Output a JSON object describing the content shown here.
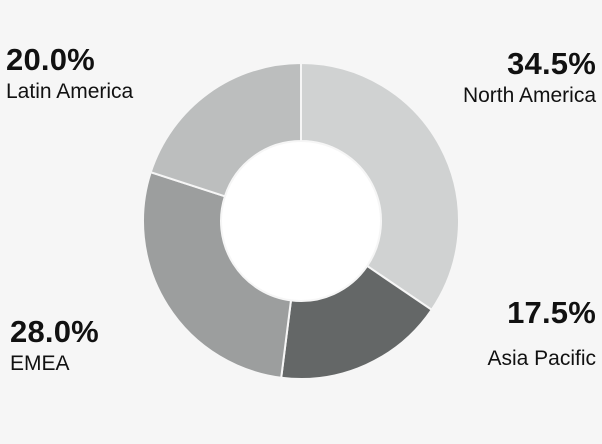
{
  "chart_data": {
    "type": "pie",
    "variant": "donut",
    "slices": [
      {
        "label": "North America",
        "value": 34.5,
        "display": "34.5%",
        "color": "#d0d2d2"
      },
      {
        "label": "Asia Pacific",
        "value": 17.5,
        "display": "17.5%",
        "color": "#646767"
      },
      {
        "label": "EMEA",
        "value": 28.0,
        "display": "28.0%",
        "color": "#9c9e9e"
      },
      {
        "label": "Latin America",
        "value": 20.0,
        "display": "20.0%",
        "color": "#bcbebe"
      }
    ],
    "legend": "none",
    "labels_position": "outside-corners",
    "start_angle": "top",
    "direction": "clockwise"
  },
  "colors": {
    "background": "#f6f6f6",
    "slice_border": "#f6f6f6",
    "hole": "#ffffff",
    "text": "#111111"
  }
}
